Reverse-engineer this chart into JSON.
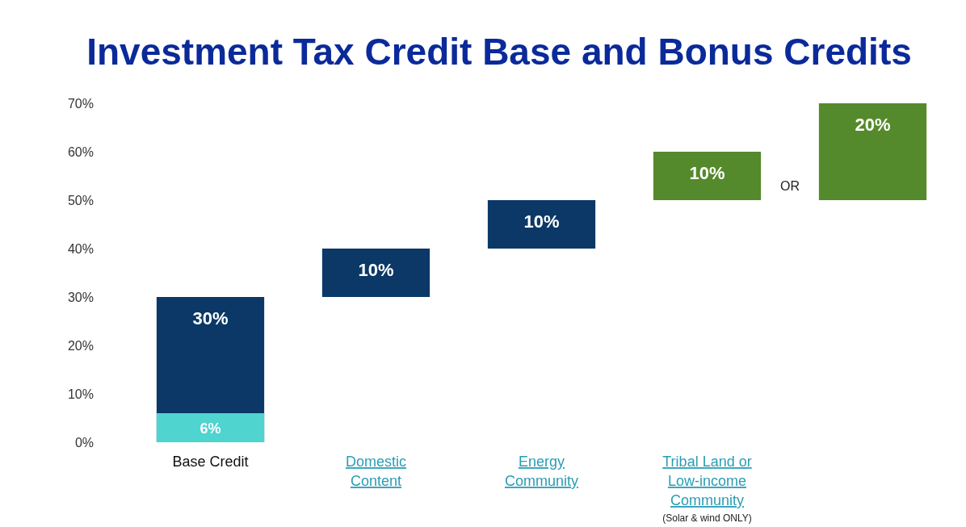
{
  "chart_data": {
    "type": "bar",
    "title": "Investment Tax Credit Base and Bonus Credits",
    "categories": [
      "Base Credit",
      "Domestic Content",
      "Energy Community",
      "Tribal Land or Low-income Community",
      null
    ],
    "series": [
      {
        "color": "#0b3866",
        "values": [
          30,
          10,
          10,
          null,
          null
        ],
        "base": [
          0,
          30,
          40,
          null,
          null
        ],
        "value_labels": [
          "30%",
          "10%",
          "10%",
          null,
          null
        ]
      },
      {
        "color": "#548a2b",
        "values": [
          null,
          null,
          null,
          10,
          20
        ],
        "base": [
          null,
          null,
          null,
          50,
          50
        ],
        "value_labels": [
          null,
          null,
          null,
          "10%",
          "20%"
        ]
      },
      {
        "color": "#4fd4cf",
        "values": [
          6,
          null,
          null,
          null,
          null
        ],
        "base": [
          0,
          null,
          null,
          null,
          null
        ],
        "value_labels": [
          "6%",
          null,
          null,
          null,
          null
        ]
      }
    ],
    "ylim": [
      0,
      70
    ],
    "yticks": [
      {
        "value": 0,
        "label": "0%"
      },
      {
        "value": 10,
        "label": "10%"
      },
      {
        "value": 20,
        "label": "20%"
      },
      {
        "value": 30,
        "label": "30%"
      },
      {
        "value": 40,
        "label": "40%"
      },
      {
        "value": 50,
        "label": "50%"
      },
      {
        "value": 60,
        "label": "60%"
      },
      {
        "value": 70,
        "label": "70%"
      }
    ],
    "annotations": [
      "OR",
      "(Solar & wind ONLY)"
    ]
  }
}
